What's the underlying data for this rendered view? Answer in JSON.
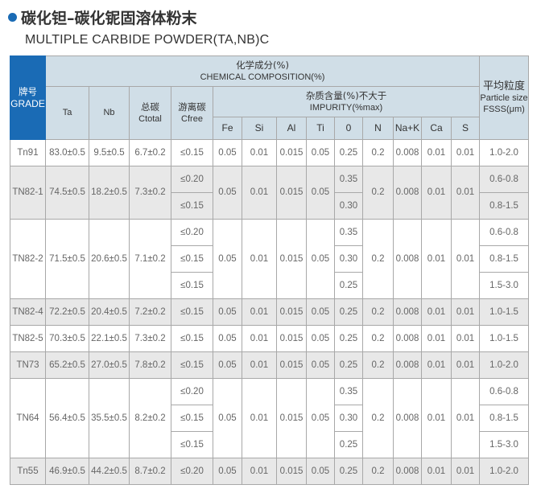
{
  "title": "碳化钽–碳化铌固溶体粉末",
  "subtitle": "MULTIPLE CARBIDE POWDER(TA,NB)C",
  "accent": "#1a6bb5",
  "header": {
    "grade_zh": "牌号",
    "grade_en": "GRADE",
    "chem_zh": "化学成分(%)",
    "chem_en": "CHEMICAL COMPOSITION(%)",
    "ta": "Ta",
    "nb": "Nb",
    "ctotal_zh": "总碳",
    "ctotal_en": "Ctotal",
    "cfree_zh": "游离碳",
    "cfree_en": "Cfree",
    "imp_zh": "杂质含量(%)不大于",
    "imp_en": "IMPURITY(%max)",
    "impurities": [
      "Fe",
      "Si",
      "Al",
      "Ti",
      "0",
      "N",
      "Na+K",
      "Ca",
      "S"
    ],
    "ps_zh": "平均粒度",
    "ps_en1": "Particle size",
    "ps_en2": "FSSS(μm)"
  },
  "rows": [
    {
      "grade": "Tn91",
      "ta": "83.0±0.5",
      "nb": "9.5±0.5",
      "ctotal": "6.7±0.2",
      "cfree": [
        "≤0.15"
      ],
      "fe": "0.05",
      "si": "0.01",
      "al": "0.015",
      "ti": "0.05",
      "o": [
        "0.25"
      ],
      "n": "0.2",
      "nak": "0.008",
      "ca": "0.01",
      "s": "0.01",
      "ps": [
        "1.0-2.0"
      ],
      "shaded": false
    },
    {
      "grade": "TN82-1",
      "ta": "74.5±0.5",
      "nb": "18.2±0.5",
      "ctotal": "7.3±0.2",
      "cfree": [
        "≤0.20",
        "≤0.15"
      ],
      "fe": "0.05",
      "si": "0.01",
      "al": "0.015",
      "ti": "0.05",
      "o": [
        "0.35",
        "0.30"
      ],
      "n": "0.2",
      "nak": "0.008",
      "ca": "0.01",
      "s": "0.01",
      "ps": [
        "0.6-0.8",
        "0.8-1.5"
      ],
      "shaded": true
    },
    {
      "grade": "TN82-2",
      "ta": "71.5±0.5",
      "nb": "20.6±0.5",
      "ctotal": "7.1±0.2",
      "cfree": [
        "≤0.20",
        "≤0.15",
        "≤0.15"
      ],
      "fe": "0.05",
      "si": "0.01",
      "al": "0.015",
      "ti": "0.05",
      "o": [
        "0.35",
        "0.30",
        "0.25"
      ],
      "n": "0.2",
      "nak": "0.008",
      "ca": "0.01",
      "s": "0.01",
      "ps": [
        "0.6-0.8",
        "0.8-1.5",
        "1.5-3.0"
      ],
      "shaded": false
    },
    {
      "grade": "TN82-4",
      "ta": "72.2±0.5",
      "nb": "20.4±0.5",
      "ctotal": "7.2±0.2",
      "cfree": [
        "≤0.15"
      ],
      "fe": "0.05",
      "si": "0.01",
      "al": "0.015",
      "ti": "0.05",
      "o": [
        "0.25"
      ],
      "n": "0.2",
      "nak": "0.008",
      "ca": "0.01",
      "s": "0.01",
      "ps": [
        "1.0-1.5"
      ],
      "shaded": true
    },
    {
      "grade": "TN82-5",
      "ta": "70.3±0.5",
      "nb": "22.1±0.5",
      "ctotal": "7.3±0.2",
      "cfree": [
        "≤0.15"
      ],
      "fe": "0.05",
      "si": "0.01",
      "al": "0.015",
      "ti": "0.05",
      "o": [
        "0.25"
      ],
      "n": "0.2",
      "nak": "0.008",
      "ca": "0.01",
      "s": "0.01",
      "ps": [
        "1.0-1.5"
      ],
      "shaded": false
    },
    {
      "grade": "TN73",
      "ta": "65.2±0.5",
      "nb": "27.0±0.5",
      "ctotal": "7.8±0.2",
      "cfree": [
        "≤0.15"
      ],
      "fe": "0.05",
      "si": "0.01",
      "al": "0.015",
      "ti": "0.05",
      "o": [
        "0.25"
      ],
      "n": "0.2",
      "nak": "0.008",
      "ca": "0.01",
      "s": "0.01",
      "ps": [
        "1.0-2.0"
      ],
      "shaded": true
    },
    {
      "grade": "TN64",
      "ta": "56.4±0.5",
      "nb": "35.5±0.5",
      "ctotal": "8.2±0.2",
      "cfree": [
        "≤0.20",
        "≤0.15",
        "≤0.15"
      ],
      "fe": "0.05",
      "si": "0.01",
      "al": "0.015",
      "ti": "0.05",
      "o": [
        "0.35",
        "0.30",
        "0.25"
      ],
      "n": "0.2",
      "nak": "0.008",
      "ca": "0.01",
      "s": "0.01",
      "ps": [
        "0.6-0.8",
        "0.8-1.5",
        "1.5-3.0"
      ],
      "shaded": false
    },
    {
      "grade": "Tn55",
      "ta": "46.9±0.5",
      "nb": "44.2±0.5",
      "ctotal": "8.7±0.2",
      "cfree": [
        "≤0.20"
      ],
      "fe": "0.05",
      "si": "0.01",
      "al": "0.015",
      "ti": "0.05",
      "o": [
        "0.25"
      ],
      "n": "0.2",
      "nak": "0.008",
      "ca": "0.01",
      "s": "0.01",
      "ps": [
        "1.0-2.0"
      ],
      "shaded": true
    }
  ]
}
